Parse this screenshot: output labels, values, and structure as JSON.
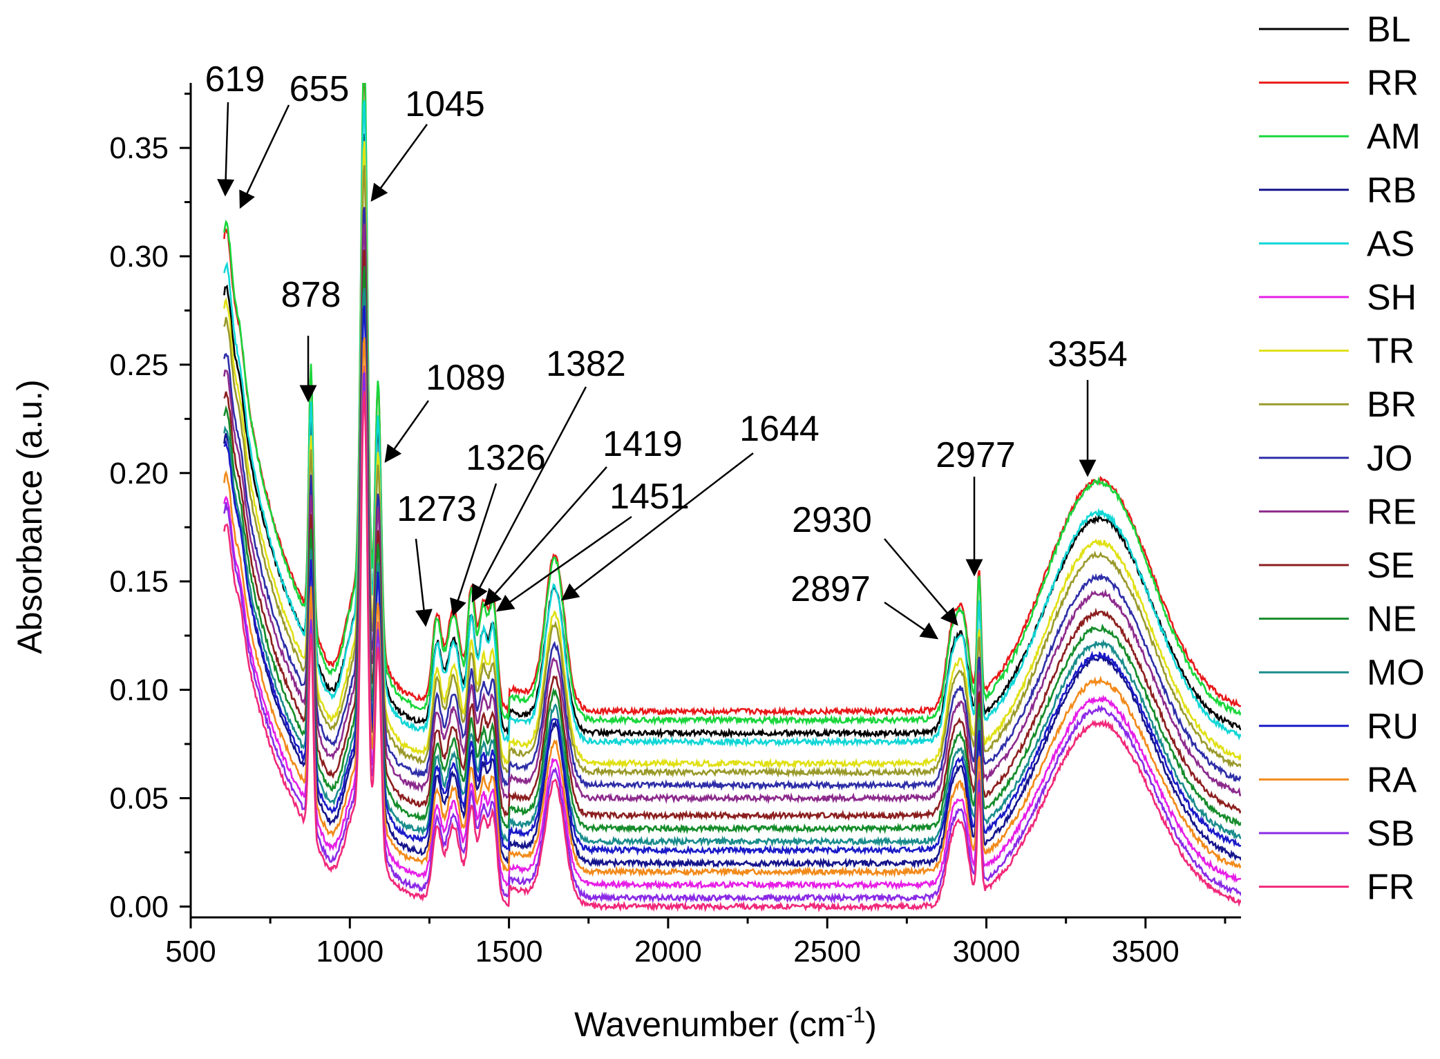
{
  "chart_data": {
    "type": "line",
    "title": "",
    "xlabel": "Wavenumber (cm",
    "xlabel_sup": "-1",
    "xlabel_close": ")",
    "ylabel": "Absorbance (a.u.)",
    "xlim": [
      500,
      3800
    ],
    "ylim": [
      -0.005,
      0.38
    ],
    "xticks": [
      500,
      1000,
      1500,
      2000,
      2500,
      3000,
      3500
    ],
    "yticks": [
      0.0,
      0.05,
      0.1,
      0.15,
      0.2,
      0.25,
      0.3,
      0.35
    ],
    "xtick_labels": [
      "500",
      "1000",
      "1500",
      "2000",
      "2500",
      "3000",
      "3500"
    ],
    "ytick_labels": [
      "0.00",
      "0.05",
      "0.10",
      "0.15",
      "0.20",
      "0.25",
      "0.30",
      "0.35"
    ],
    "legend_position": "right",
    "peaks": [
      {
        "label": "619",
        "x": 619
      },
      {
        "label": "655",
        "x": 655
      },
      {
        "label": "878",
        "x": 878
      },
      {
        "label": "1045",
        "x": 1045
      },
      {
        "label": "1089",
        "x": 1089
      },
      {
        "label": "1273",
        "x": 1273
      },
      {
        "label": "1326",
        "x": 1326
      },
      {
        "label": "1382",
        "x": 1382
      },
      {
        "label": "1419",
        "x": 1419
      },
      {
        "label": "1451",
        "x": 1451
      },
      {
        "label": "1644",
        "x": 1644
      },
      {
        "label": "2897",
        "x": 2897
      },
      {
        "label": "2930",
        "x": 2930
      },
      {
        "label": "2977",
        "x": 2977
      },
      {
        "label": "3354",
        "x": 3354
      }
    ],
    "series": [
      {
        "name": "BL",
        "color": "#000000",
        "baseline": 0.08,
        "scale": 0.9
      },
      {
        "name": "RR",
        "color": "#e8191a",
        "baseline": 0.09,
        "scale": 0.97
      },
      {
        "name": "AM",
        "color": "#19d63b",
        "baseline": 0.086,
        "scale": 1.0
      },
      {
        "name": "RB",
        "color": "#14148c",
        "baseline": 0.02,
        "scale": 0.86
      },
      {
        "name": "AS",
        "color": "#12d6d6",
        "baseline": 0.076,
        "scale": 0.96
      },
      {
        "name": "SH",
        "color": "#e61ee6",
        "baseline": 0.01,
        "scale": 0.78
      },
      {
        "name": "TR",
        "color": "#e0e014",
        "baseline": 0.066,
        "scale": 0.93
      },
      {
        "name": "BR",
        "color": "#9a9a2c",
        "baseline": 0.062,
        "scale": 0.91
      },
      {
        "name": "JO",
        "color": "#2e2ea8",
        "baseline": 0.056,
        "scale": 0.87
      },
      {
        "name": "RE",
        "color": "#8c2a8c",
        "baseline": 0.05,
        "scale": 0.86
      },
      {
        "name": "SE",
        "color": "#8c1e1e",
        "baseline": 0.042,
        "scale": 0.85
      },
      {
        "name": "NE",
        "color": "#148c2a",
        "baseline": 0.036,
        "scale": 0.84
      },
      {
        "name": "MO",
        "color": "#1a8c8c",
        "baseline": 0.03,
        "scale": 0.83
      },
      {
        "name": "RU",
        "color": "#1a1ac8",
        "baseline": 0.026,
        "scale": 0.82
      },
      {
        "name": "RA",
        "color": "#f28a1a",
        "baseline": 0.016,
        "scale": 0.8
      },
      {
        "name": "SB",
        "color": "#8a2ae6",
        "baseline": 0.004,
        "scale": 0.79
      },
      {
        "name": "FR",
        "color": "#f0287a",
        "baseline": 0.0,
        "scale": 0.77
      }
    ]
  }
}
